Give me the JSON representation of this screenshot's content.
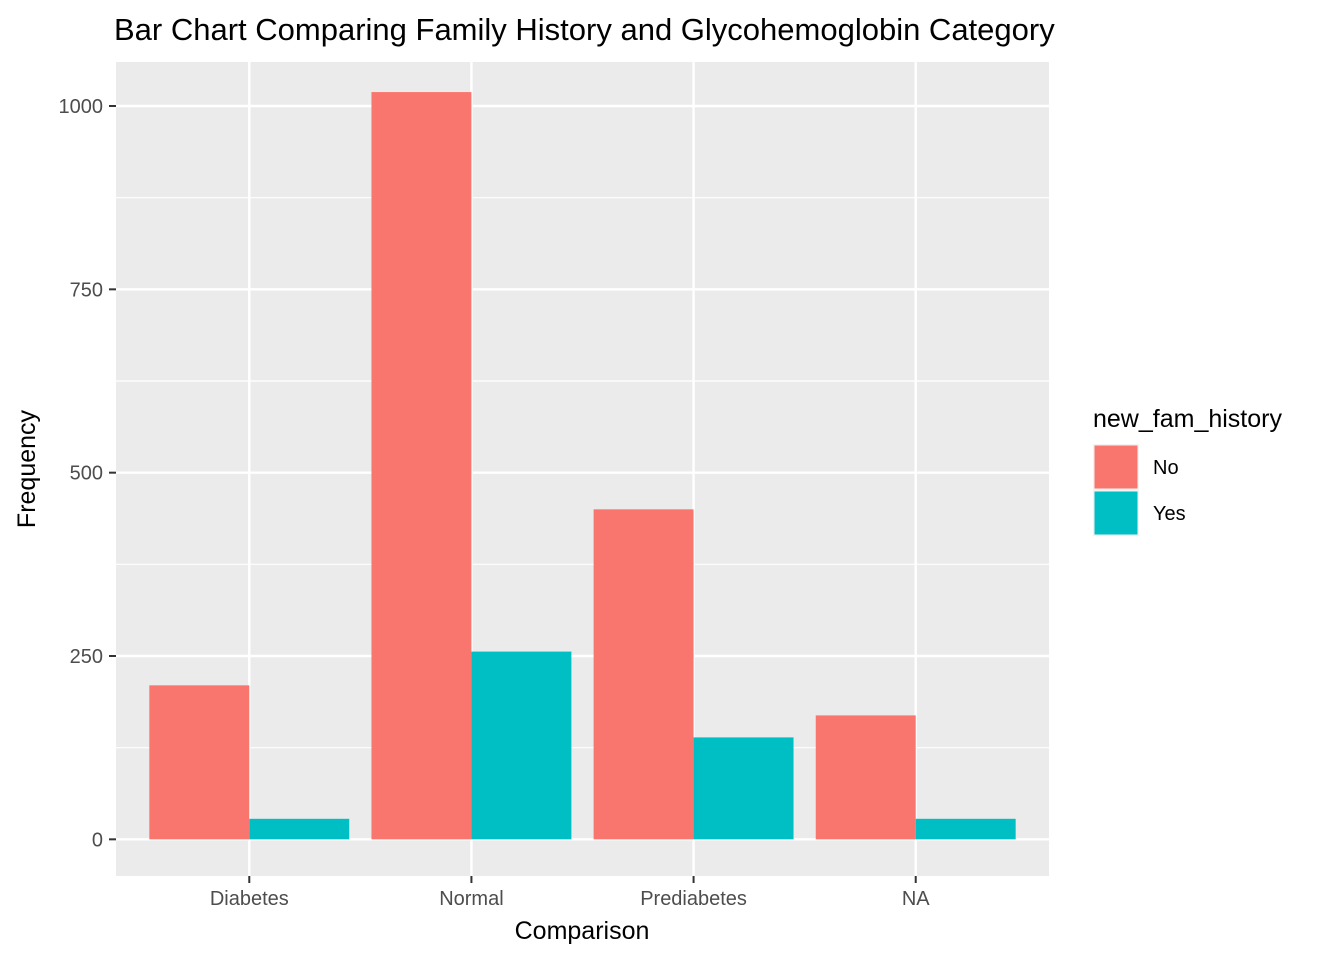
{
  "chart_data": {
    "type": "bar",
    "title": "Bar Chart Comparing Family History and Glycohemoglobin Category",
    "xlabel": "Comparison",
    "ylabel": "Frequency",
    "categories": [
      "Diabetes",
      "Normal",
      "Prediabetes",
      "NA"
    ],
    "series": [
      {
        "name": "No",
        "color": "#F8766D",
        "values": [
          210,
          1019,
          450,
          169
        ]
      },
      {
        "name": "Yes",
        "color": "#00BFC4",
        "values": [
          28,
          256,
          139,
          28
        ]
      }
    ],
    "ylim": [
      -50,
      1060
    ],
    "yticks": [
      0,
      250,
      500,
      750,
      1000
    ],
    "legend": {
      "title": "new_fam_history",
      "position": "right"
    },
    "grid": true,
    "panel_background": "#EBEBEB",
    "grid_color": "#FFFFFF"
  }
}
